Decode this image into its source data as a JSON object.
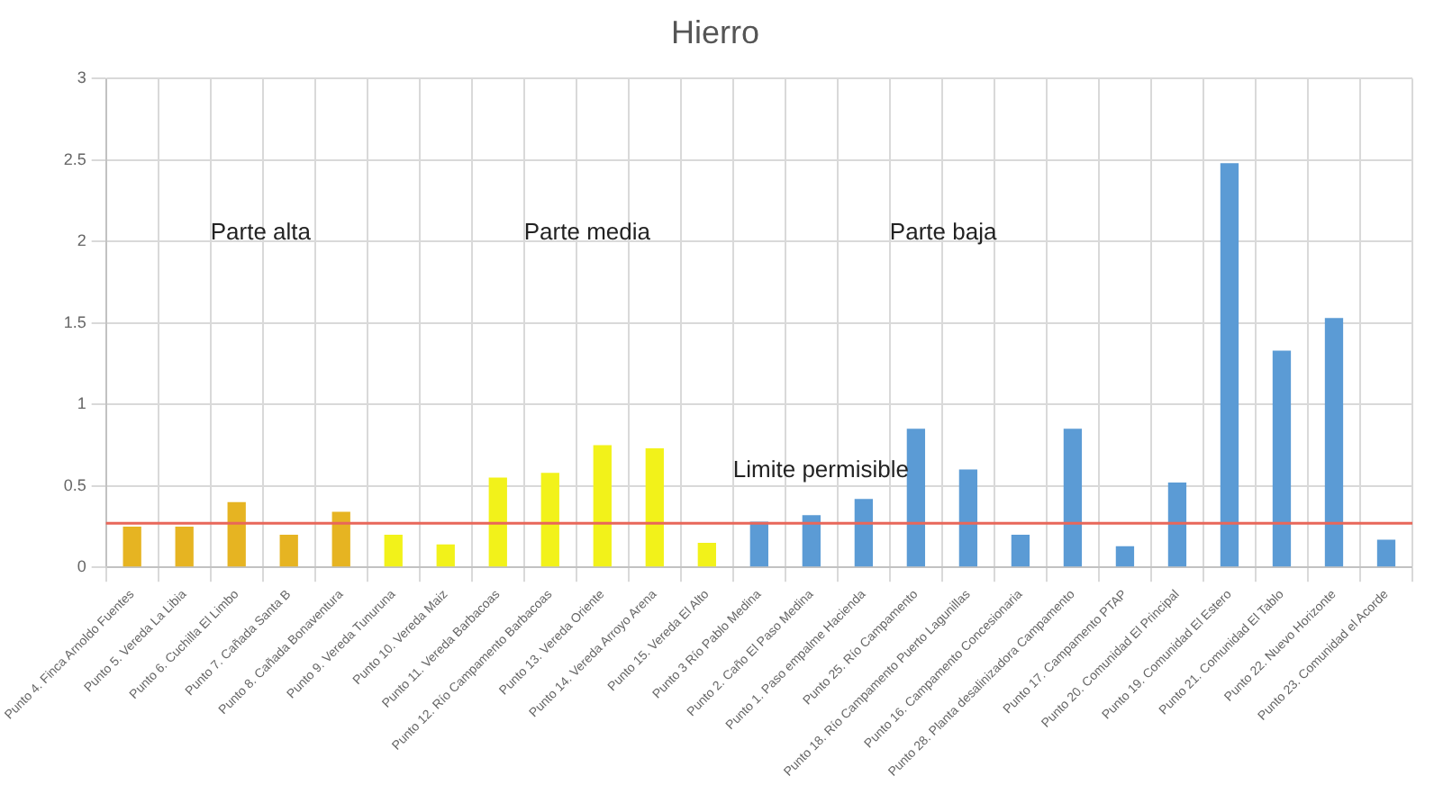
{
  "chart_data": {
    "type": "bar",
    "title": "Hierro",
    "categories": [
      "Punto 4. Finca Arnoldo Fuentes",
      "Punto 5. Vereda La Libia",
      "Punto 6. Cuchilla El Limbo",
      "Punto 7. Cañada Santa B",
      "Punto 8. Cañada Bonaventura",
      "Punto 9. Vereda Tunuruna",
      "Punto 10. Vereda Maiz",
      "Punto 11. Vereda Barbacoas",
      "Punto 12. Río Campamento Barbacoas",
      "Punto 13. Vereda Oriente",
      "Punto 14. Vereda Arroyo Arena",
      "Punto 15. Vereda El Alto",
      "Punto 3 Río Pablo Medina",
      "Punto 2. Caño El Paso Medina",
      "Punto 1. Paso empalme Hacienda",
      "Punto 25. Río Campamento",
      "Punto 18. Río Campamento Puerto Lagunillas",
      "Punto 16. Campamento Concesionaria",
      "Punto 28. Planta desalinizadora Campamento",
      "Punto 17. Campamento PTAP",
      "Punto 20. Comunidad El Principal",
      "Punto 19. Comunidad El Estero",
      "Punto 21. Comunidad El Tablo",
      "Punto 22. Nuevo Horizonte",
      "Punto 23. Comunidad el Acorde"
    ],
    "values": [
      0.25,
      0.25,
      0.4,
      0.2,
      0.34,
      0.2,
      0.14,
      0.55,
      0.58,
      0.75,
      0.73,
      0.15,
      0.28,
      0.32,
      0.42,
      0.85,
      0.6,
      0.2,
      0.85,
      0.13,
      0.52,
      2.48,
      1.33,
      1.53,
      0.17
    ],
    "colors": [
      "#e6b422",
      "#e6b422",
      "#e6b422",
      "#e6b422",
      "#e6b422",
      "#f2f21a",
      "#f2f21a",
      "#f2f21a",
      "#f2f21a",
      "#f2f21a",
      "#f2f21a",
      "#f2f21a",
      "#5b9bd5",
      "#5b9bd5",
      "#5b9bd5",
      "#5b9bd5",
      "#5b9bd5",
      "#5b9bd5",
      "#5b9bd5",
      "#5b9bd5",
      "#5b9bd5",
      "#5b9bd5",
      "#5b9bd5",
      "#5b9bd5",
      "#5b9bd5"
    ],
    "ylim": [
      0,
      3
    ],
    "yticks": [
      0,
      0.5,
      1,
      1.5,
      2,
      2.5,
      3
    ],
    "grid": true,
    "legend": false,
    "ref_lines": [
      {
        "axis": "y",
        "value": 0.27,
        "label": "Limite permisible",
        "color": "#e8675a"
      }
    ],
    "annotations": [
      "Parte alta",
      "Parte media",
      "Parte baja"
    ]
  }
}
